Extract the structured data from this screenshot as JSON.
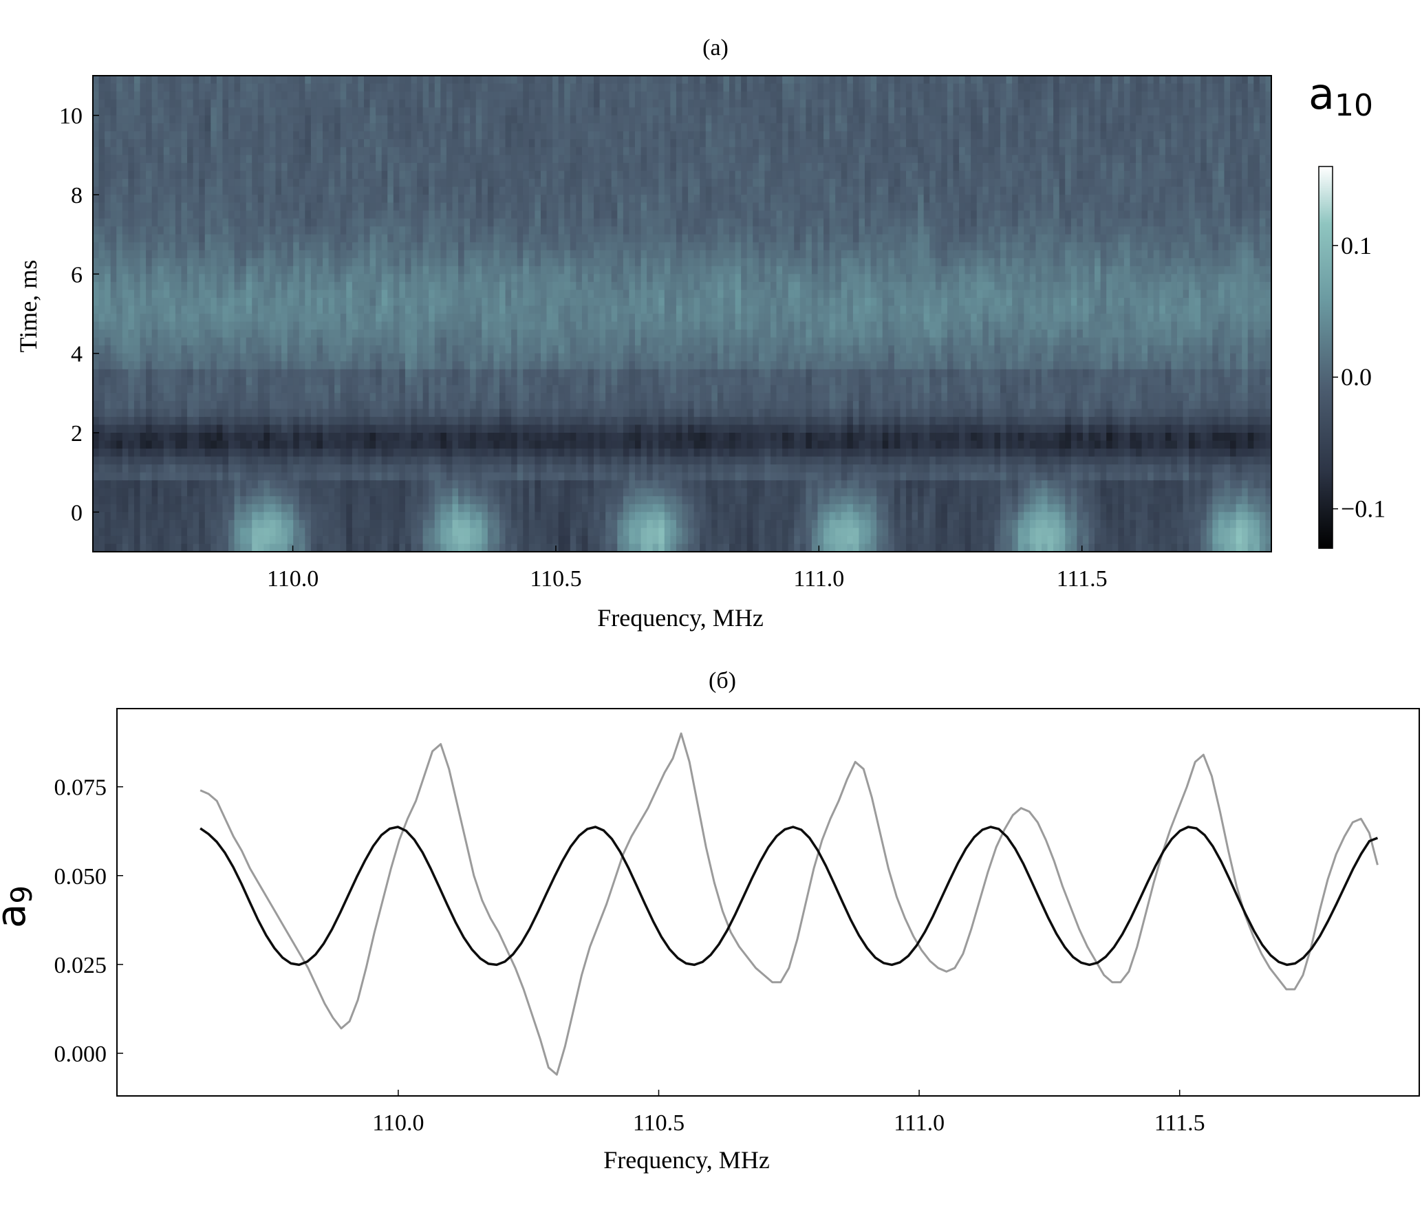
{
  "chart_data": [
    {
      "panel": "(a)",
      "type": "heatmap",
      "title": "(a)",
      "xlabel": "Frequency, MHz",
      "ylabel": "Time, ms",
      "xlim": [
        109.62,
        111.86
      ],
      "ylim": [
        -1.0,
        11.0
      ],
      "xticks": [
        110.0,
        110.5,
        111.0,
        111.5
      ],
      "xtick_labels": [
        "110.0",
        "110.5",
        "111.0",
        "111.5"
      ],
      "yticks": [
        0,
        2,
        4,
        6,
        8,
        10
      ],
      "ytick_labels": [
        "0",
        "2",
        "4",
        "6",
        "8",
        "10"
      ],
      "colorbar": {
        "label_base": "a",
        "label_sub": "10",
        "range": [
          -0.13,
          0.16
        ],
        "ticks": [
          -0.1,
          0.0,
          0.1
        ],
        "tick_labels": [
          "−0.1",
          "0.0",
          "0.1"
        ],
        "colormap": [
          "#000000",
          "#2c3445",
          "#4c5d70",
          "#6b9aa1",
          "#8fc5c0",
          "#ffffff"
        ]
      },
      "bright_frequency_centers_near_t0": [
        109.95,
        110.32,
        110.68,
        111.05,
        111.43,
        111.8
      ],
      "dark_band_time_ms": [
        1.0,
        2.5
      ],
      "bright_band_time_ms": [
        3.5,
        7.0
      ]
    },
    {
      "panel": "(б)",
      "type": "line",
      "title": "(б)",
      "xlabel": "Frequency, MHz",
      "ylabel_base": "a",
      "ylabel_sub": "9",
      "xlim": [
        109.46,
        111.96
      ],
      "ylim": [
        -0.012,
        0.097
      ],
      "xticks": [
        110.0,
        110.5,
        111.0,
        111.5
      ],
      "xtick_labels": [
        "110.0",
        "110.5",
        "111.0",
        "111.5"
      ],
      "yticks": [
        0.0,
        0.025,
        0.05,
        0.075
      ],
      "ytick_labels": [
        "0.000",
        "0.025",
        "0.050",
        "0.075"
      ],
      "series": [
        {
          "style": "noisy measured",
          "color": "#9b9b9b",
          "x_range": [
            109.62,
            111.88
          ],
          "values": [
            0.074,
            0.073,
            0.071,
            0.066,
            0.061,
            0.057,
            0.052,
            0.048,
            0.044,
            0.04,
            0.036,
            0.032,
            0.028,
            0.024,
            0.019,
            0.014,
            0.01,
            0.007,
            0.009,
            0.015,
            0.024,
            0.034,
            0.043,
            0.052,
            0.06,
            0.066,
            0.071,
            0.078,
            0.085,
            0.087,
            0.08,
            0.07,
            0.06,
            0.05,
            0.043,
            0.038,
            0.034,
            0.029,
            0.024,
            0.018,
            0.011,
            0.004,
            -0.004,
            -0.006,
            0.002,
            0.012,
            0.022,
            0.03,
            0.036,
            0.042,
            0.049,
            0.056,
            0.061,
            0.065,
            0.069,
            0.074,
            0.079,
            0.083,
            0.09,
            0.082,
            0.07,
            0.058,
            0.048,
            0.04,
            0.034,
            0.03,
            0.027,
            0.024,
            0.022,
            0.02,
            0.02,
            0.024,
            0.032,
            0.042,
            0.052,
            0.06,
            0.066,
            0.071,
            0.077,
            0.082,
            0.08,
            0.072,
            0.062,
            0.052,
            0.044,
            0.038,
            0.033,
            0.029,
            0.026,
            0.024,
            0.023,
            0.024,
            0.028,
            0.035,
            0.043,
            0.051,
            0.058,
            0.063,
            0.067,
            0.069,
            0.068,
            0.065,
            0.06,
            0.054,
            0.047,
            0.041,
            0.035,
            0.03,
            0.026,
            0.022,
            0.02,
            0.02,
            0.023,
            0.03,
            0.039,
            0.048,
            0.056,
            0.063,
            0.069,
            0.075,
            0.082,
            0.084,
            0.078,
            0.068,
            0.057,
            0.047,
            0.039,
            0.033,
            0.028,
            0.024,
            0.021,
            0.018,
            0.018,
            0.022,
            0.03,
            0.04,
            0.049,
            0.056,
            0.061,
            0.065,
            0.066,
            0.062,
            0.053
          ]
        },
        {
          "style": "sinusoidal fit",
          "color": "#0d0d0d",
          "x_range": [
            109.62,
            111.88
          ],
          "values": [
            0.0633,
            0.0617,
            0.0595,
            0.0564,
            0.0524,
            0.0477,
            0.0426,
            0.0376,
            0.0332,
            0.0296,
            0.0269,
            0.0253,
            0.0249,
            0.0258,
            0.0278,
            0.0309,
            0.0349,
            0.0396,
            0.0446,
            0.0496,
            0.0542,
            0.0583,
            0.0614,
            0.0632,
            0.0637,
            0.0626,
            0.0601,
            0.0565,
            0.0519,
            0.0469,
            0.0418,
            0.0369,
            0.0326,
            0.0292,
            0.0267,
            0.0252,
            0.0249,
            0.0258,
            0.0279,
            0.031,
            0.035,
            0.0397,
            0.0447,
            0.0496,
            0.0542,
            0.0582,
            0.0612,
            0.0631,
            0.0637,
            0.0627,
            0.0603,
            0.0567,
            0.0522,
            0.0472,
            0.0421,
            0.0372,
            0.0328,
            0.0293,
            0.0268,
            0.0253,
            0.0249,
            0.0257,
            0.0277,
            0.0307,
            0.0346,
            0.0392,
            0.0442,
            0.0492,
            0.0539,
            0.058,
            0.0611,
            0.063,
            0.0637,
            0.0629,
            0.0606,
            0.0571,
            0.0527,
            0.0477,
            0.0426,
            0.0376,
            0.0332,
            0.0296,
            0.0269,
            0.0254,
            0.0249,
            0.0256,
            0.0274,
            0.0303,
            0.0341,
            0.0386,
            0.0436,
            0.0486,
            0.0534,
            0.0576,
            0.0608,
            0.0629,
            0.0637,
            0.0631,
            0.0609,
            0.0575,
            0.0532,
            0.0482,
            0.0431,
            0.0381,
            0.0336,
            0.0299,
            0.0271,
            0.0255,
            0.0249,
            0.0255,
            0.0272,
            0.0299,
            0.0335,
            0.0379,
            0.0428,
            0.0478,
            0.0526,
            0.0569,
            0.0603,
            0.0626,
            0.0637,
            0.0633,
            0.0614,
            0.0582,
            0.054,
            0.0491,
            0.044,
            0.039,
            0.0344,
            0.0305,
            0.0276,
            0.0257,
            0.0249,
            0.0253,
            0.0269,
            0.0295,
            0.033,
            0.0373,
            0.042,
            0.0469,
            0.0518,
            0.0561,
            0.0597,
            0.0606
          ]
        }
      ]
    }
  ]
}
